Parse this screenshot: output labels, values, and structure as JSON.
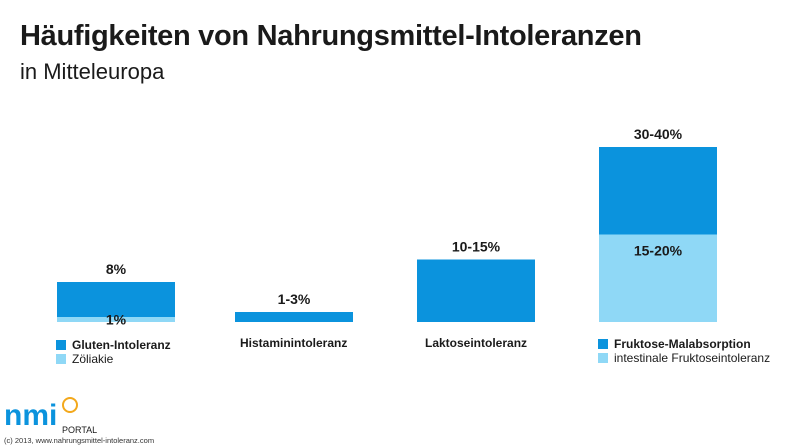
{
  "chart_data": {
    "type": "bar",
    "title": "Häufigkeiten von Nahrungsmittel-Intoleranzen",
    "subtitle": "in Mitteleuropa",
    "xlabel": "",
    "ylabel": "",
    "grid": false,
    "categories": [
      "Gluten-Intoleranz",
      "Histaminintoleranz",
      "Laktoseintoleranz",
      "Fruktose-Malabsorption"
    ],
    "bars": [
      {
        "category": "Gluten-Intoleranz",
        "total_label": "8%",
        "total_value": 8,
        "sub_label": "1%",
        "sub_value": 1,
        "sub_category": "Zöliakie"
      },
      {
        "category": "Histaminintoleranz",
        "total_label": "1-3%",
        "total_value": 2
      },
      {
        "category": "Laktoseintoleranz",
        "total_label": "10-15%",
        "total_value": 12.5
      },
      {
        "category": "Fruktose-Malabsorption",
        "total_label": "30-40%",
        "total_value": 35,
        "sub_label": "15-20%",
        "sub_value": 17.5,
        "sub_category": "intestinale Fruktoseintoleranz"
      }
    ],
    "colors": {
      "primary": "#0b93dd",
      "secondary": "#8fd8f6"
    }
  },
  "footer": {
    "logo_text": "nmi",
    "logo_sub": "PORTAL",
    "copyright": "(c) 2013, www.nahrungsmittel-intoleranz.com"
  }
}
